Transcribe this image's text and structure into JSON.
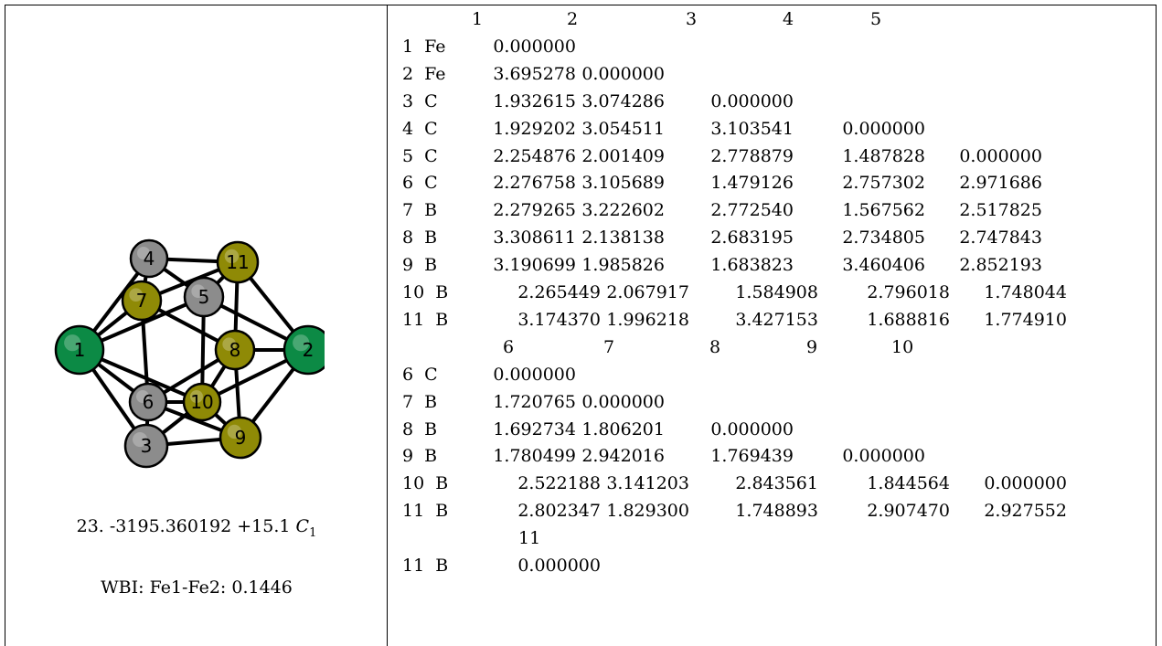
{
  "structure": {
    "atoms": [
      {
        "label": "1",
        "element": "Fe"
      },
      {
        "label": "2",
        "element": "Fe"
      },
      {
        "label": "3",
        "element": "C"
      },
      {
        "label": "4",
        "element": "C"
      },
      {
        "label": "5",
        "element": "C"
      },
      {
        "label": "6",
        "element": "C"
      },
      {
        "label": "7",
        "element": "B"
      },
      {
        "label": "8",
        "element": "B"
      },
      {
        "label": "9",
        "element": "B"
      },
      {
        "label": "10",
        "element": "B"
      },
      {
        "label": "11",
        "element": "B"
      }
    ],
    "colors": {
      "Fe": "#0c8a45",
      "C": "#8c8c8c",
      "B": "#8f8a06"
    }
  },
  "caption": {
    "line1": "23. -3195.360192   +15.1",
    "symmetry": "C",
    "symmetry_sub": "1",
    "line2": "WBI: Fe1-Fe2: 0.1446"
  },
  "blocks": [
    {
      "cols": [
        "1",
        "2",
        "3",
        "4",
        "5"
      ],
      "rows": [
        {
          "idx": "1",
          "el": "Fe",
          "vals": [
            "0.000000"
          ]
        },
        {
          "idx": "2",
          "el": "Fe",
          "vals": [
            "3.695278",
            "0.000000"
          ]
        },
        {
          "idx": "3",
          "el": "C",
          "vals": [
            "1.932615",
            "3.074286",
            "0.000000"
          ]
        },
        {
          "idx": "4",
          "el": "C",
          "vals": [
            "1.929202",
            "3.054511",
            "3.103541",
            "0.000000"
          ]
        },
        {
          "idx": "5",
          "el": "C",
          "vals": [
            "2.254876",
            "2.001409",
            "2.778879",
            "1.487828",
            "0.000000"
          ]
        },
        {
          "idx": "6",
          "el": "C",
          "vals": [
            "2.276758",
            "3.105689",
            "1.479126",
            "2.757302",
            "2.971686"
          ]
        },
        {
          "idx": "7",
          "el": "B",
          "vals": [
            "2.279265",
            "3.222602",
            "2.772540",
            "1.567562",
            "2.517825"
          ]
        },
        {
          "idx": "8",
          "el": "B",
          "vals": [
            "3.308611",
            "2.138138",
            "2.683195",
            "2.734805",
            "2.747843"
          ]
        },
        {
          "idx": "9",
          "el": "B",
          "vals": [
            "3.190699",
            "1.985826",
            "1.683823",
            "3.460406",
            "2.852193"
          ]
        },
        {
          "idx": "10",
          "el": "B",
          "vals": [
            "2.265449",
            "2.067917",
            "1.584908",
            "2.796018",
            "1.748044"
          ]
        },
        {
          "idx": "11",
          "el": "B",
          "vals": [
            "3.174370",
            "1.996218",
            "3.427153",
            "1.688816",
            "1.774910"
          ]
        }
      ]
    },
    {
      "cols": [
        "6",
        "7",
        "8",
        "9",
        "10"
      ],
      "rows": [
        {
          "idx": "6",
          "el": "C",
          "vals": [
            "0.000000"
          ]
        },
        {
          "idx": "7",
          "el": "B",
          "vals": [
            "1.720765",
            "0.000000"
          ]
        },
        {
          "idx": "8",
          "el": "B",
          "vals": [
            "1.692734",
            "1.806201",
            "0.000000"
          ]
        },
        {
          "idx": "9",
          "el": "B",
          "vals": [
            "1.780499",
            "2.942016",
            "1.769439",
            "0.000000"
          ]
        },
        {
          "idx": "10",
          "el": "B",
          "vals": [
            "2.522188",
            "3.141203",
            "2.843561",
            "1.844564",
            "0.000000"
          ]
        },
        {
          "idx": "11",
          "el": "B",
          "vals": [
            "2.802347",
            "1.829300",
            "1.748893",
            "2.907470",
            "2.927552"
          ]
        }
      ]
    },
    {
      "cols": [
        "11"
      ],
      "rows": [
        {
          "idx": "11",
          "el": "B",
          "vals": [
            "0.000000"
          ]
        }
      ]
    }
  ]
}
